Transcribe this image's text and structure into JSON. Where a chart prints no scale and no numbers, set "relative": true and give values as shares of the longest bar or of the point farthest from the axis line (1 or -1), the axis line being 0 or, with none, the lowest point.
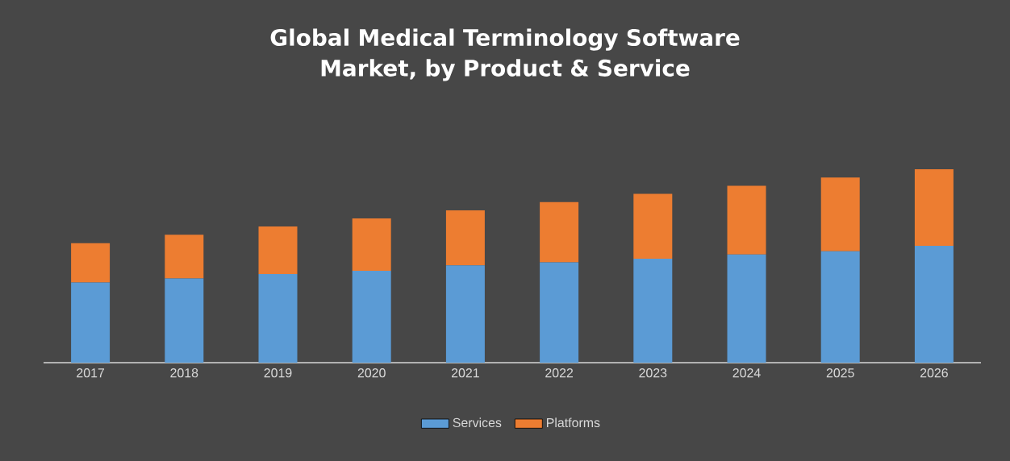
{
  "chart_data": {
    "type": "bar",
    "title": "Global Medical Terminology Software Market, by Product & Service",
    "categories": [
      "2017",
      "2018",
      "2019",
      "2020",
      "2021",
      "2022",
      "2023",
      "2024",
      "2025",
      "2026"
    ],
    "stacked": true,
    "relative": true,
    "legend": "bottom",
    "series": [
      {
        "name": "Services",
        "color": "#5b9bd5",
        "values": [
          0.415,
          0.435,
          0.458,
          0.475,
          0.503,
          0.519,
          0.537,
          0.559,
          0.576,
          0.604
        ]
      },
      {
        "name": "Platforms",
        "color": "#ed7d31",
        "values": [
          0.203,
          0.226,
          0.246,
          0.271,
          0.285,
          0.311,
          0.336,
          0.356,
          0.381,
          0.396
        ]
      }
    ]
  }
}
